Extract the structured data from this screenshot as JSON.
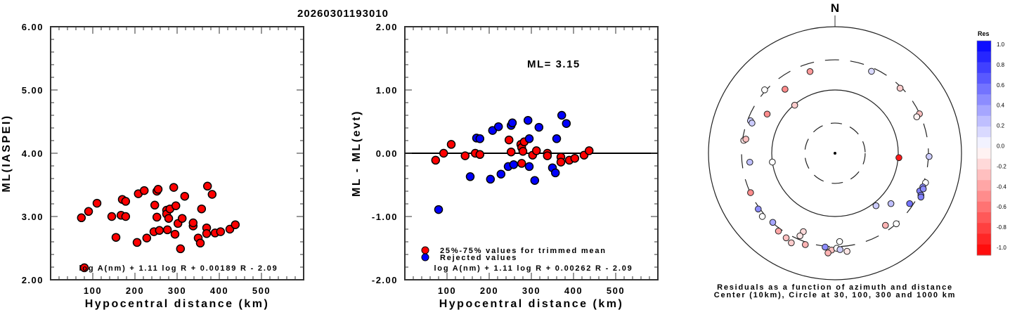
{
  "title": "20260301193010",
  "chart_data": [
    {
      "type": "scatter",
      "name": "magnitude-vs-distance",
      "xlabel": "Hypocentral distance (km)",
      "ylabel": "ML(IASPEI)",
      "xlim": [
        0,
        600
      ],
      "ylim": [
        2.0,
        6.0
      ],
      "xticks": [
        100,
        200,
        300,
        400,
        500
      ],
      "xtick_labels": [
        "100",
        "200",
        "300",
        "400",
        "500"
      ],
      "yticks": [
        2.0,
        3.0,
        4.0,
        5.0,
        6.0
      ],
      "ytick_labels": [
        "2.00",
        "3.00",
        "4.00",
        "5.00",
        "6.00"
      ],
      "formula": "log A(nm) + 1.11 log R + 0.00189 R - 2.09",
      "point_color": "#ff0000",
      "points": [
        {
          "x": 73,
          "y": 2.98
        },
        {
          "x": 90,
          "y": 3.08
        },
        {
          "x": 110,
          "y": 3.21
        },
        {
          "x": 145,
          "y": 3.0
        },
        {
          "x": 155,
          "y": 2.67
        },
        {
          "x": 167,
          "y": 3.02
        },
        {
          "x": 170,
          "y": 3.27
        },
        {
          "x": 178,
          "y": 3.24
        },
        {
          "x": 178,
          "y": 3.0
        },
        {
          "x": 205,
          "y": 2.59
        },
        {
          "x": 208,
          "y": 3.36
        },
        {
          "x": 222,
          "y": 3.41
        },
        {
          "x": 228,
          "y": 2.66
        },
        {
          "x": 245,
          "y": 2.76
        },
        {
          "x": 247,
          "y": 3.18
        },
        {
          "x": 252,
          "y": 3.4
        },
        {
          "x": 252,
          "y": 2.99
        },
        {
          "x": 255,
          "y": 3.43
        },
        {
          "x": 258,
          "y": 2.78
        },
        {
          "x": 275,
          "y": 3.1
        },
        {
          "x": 275,
          "y": 3.04
        },
        {
          "x": 277,
          "y": 2.79
        },
        {
          "x": 280,
          "y": 2.97
        },
        {
          "x": 283,
          "y": 3.12
        },
        {
          "x": 292,
          "y": 3.46
        },
        {
          "x": 295,
          "y": 2.72
        },
        {
          "x": 297,
          "y": 3.17
        },
        {
          "x": 302,
          "y": 2.89
        },
        {
          "x": 308,
          "y": 2.49
        },
        {
          "x": 312,
          "y": 2.97
        },
        {
          "x": 318,
          "y": 3.32
        },
        {
          "x": 338,
          "y": 2.85
        },
        {
          "x": 338,
          "y": 2.9
        },
        {
          "x": 350,
          "y": 2.66
        },
        {
          "x": 355,
          "y": 2.58
        },
        {
          "x": 358,
          "y": 3.12
        },
        {
          "x": 370,
          "y": 2.82
        },
        {
          "x": 370,
          "y": 2.73
        },
        {
          "x": 372,
          "y": 3.48
        },
        {
          "x": 383,
          "y": 3.35
        },
        {
          "x": 390,
          "y": 2.74
        },
        {
          "x": 403,
          "y": 2.76
        },
        {
          "x": 425,
          "y": 2.8
        },
        {
          "x": 438,
          "y": 2.87
        },
        {
          "x": 80,
          "y": 2.19
        }
      ]
    },
    {
      "type": "scatter",
      "name": "residual-vs-distance",
      "xlabel": "Hypocentral distance (km)",
      "ylabel": "ML - ML(evt)",
      "xlim": [
        0,
        600
      ],
      "ylim": [
        -2.0,
        2.0
      ],
      "xticks": [
        100,
        200,
        300,
        400,
        500
      ],
      "xtick_labels": [
        "100",
        "200",
        "300",
        "400",
        "500"
      ],
      "yticks": [
        -2.0,
        -1.0,
        0.0,
        1.0,
        2.0
      ],
      "ytick_labels": [
        "-2.00",
        "-1.00",
        "0.00",
        "1.00",
        "2.00"
      ],
      "annotation": "ML= 3.15",
      "formula": "log A(nm) + 1.11 log R + 0.00262 R - 2.09",
      "legend": [
        {
          "label": "25%-75% values for trimmed mean",
          "color": "#ff0000"
        },
        {
          "label": "Rejected values",
          "color": "#0000ff"
        }
      ],
      "series": [
        {
          "name": "25%-75% values for trimmed mean",
          "color": "#ff0000",
          "points": [
            {
              "x": 73,
              "y": -0.11
            },
            {
              "x": 92,
              "y": 0.0
            },
            {
              "x": 110,
              "y": 0.14
            },
            {
              "x": 143,
              "y": -0.04
            },
            {
              "x": 167,
              "y": 0.0
            },
            {
              "x": 178,
              "y": -0.02
            },
            {
              "x": 247,
              "y": 0.21
            },
            {
              "x": 252,
              "y": 0.02
            },
            {
              "x": 275,
              "y": 0.14
            },
            {
              "x": 277,
              "y": 0.09
            },
            {
              "x": 283,
              "y": 0.18
            },
            {
              "x": 280,
              "y": 0.03
            },
            {
              "x": 277,
              "y": -0.16
            },
            {
              "x": 303,
              "y": -0.03
            },
            {
              "x": 312,
              "y": 0.04
            },
            {
              "x": 338,
              "y": 0.0
            },
            {
              "x": 338,
              "y": -0.04
            },
            {
              "x": 370,
              "y": -0.06
            },
            {
              "x": 370,
              "y": -0.14
            },
            {
              "x": 390,
              "y": -0.11
            },
            {
              "x": 403,
              "y": -0.08
            },
            {
              "x": 425,
              "y": -0.03
            },
            {
              "x": 437,
              "y": 0.04
            }
          ]
        },
        {
          "name": "Rejected values",
          "color": "#0000ff",
          "points": [
            {
              "x": 80,
              "y": -0.89
            },
            {
              "x": 155,
              "y": -0.37
            },
            {
              "x": 170,
              "y": 0.24
            },
            {
              "x": 178,
              "y": 0.23
            },
            {
              "x": 203,
              "y": -0.41
            },
            {
              "x": 208,
              "y": 0.36
            },
            {
              "x": 222,
              "y": 0.42
            },
            {
              "x": 228,
              "y": -0.33
            },
            {
              "x": 245,
              "y": -0.21
            },
            {
              "x": 252,
              "y": 0.44
            },
            {
              "x": 255,
              "y": 0.48
            },
            {
              "x": 258,
              "y": -0.18
            },
            {
              "x": 292,
              "y": 0.52
            },
            {
              "x": 295,
              "y": 0.23
            },
            {
              "x": 295,
              "y": -0.21
            },
            {
              "x": 308,
              "y": -0.43
            },
            {
              "x": 318,
              "y": 0.41
            },
            {
              "x": 350,
              "y": -0.23
            },
            {
              "x": 357,
              "y": -0.31
            },
            {
              "x": 360,
              "y": 0.23
            },
            {
              "x": 372,
              "y": 0.6
            },
            {
              "x": 383,
              "y": 0.47
            }
          ]
        }
      ]
    },
    {
      "type": "scatter",
      "name": "residual-azimuth-polar",
      "north_label": "N",
      "caption_line1": "Residuals as a function of azimuth and distance",
      "caption_line2": "Center (10km), Circle at 30, 100, 300 and 1000 km",
      "radial_scale": "log10",
      "center_km": 10,
      "circles_km": [
        30,
        100,
        300,
        1000
      ],
      "colorbar": {
        "title": "Res",
        "min": -1.0,
        "max": 1.0,
        "labels": [
          "1.0",
          "0.8",
          "0.6",
          "0.4",
          "0.2",
          "0.0",
          "-0.2",
          "-0.4",
          "-0.6",
          "-0.8",
          "-1.0"
        ]
      },
      "stations": [
        {
          "az": 343,
          "dist_km": 224,
          "res": -0.4
        },
        {
          "az": 24,
          "dist_km": 262,
          "res": 0.15
        },
        {
          "az": 45,
          "dist_km": 285,
          "res": -0.2
        },
        {
          "az": 65,
          "dist_km": 297,
          "res": -0.25
        },
        {
          "az": 66,
          "dist_km": 260,
          "res": -0.05
        },
        {
          "az": 322,
          "dist_km": 192,
          "res": -0.45
        },
        {
          "az": 312,
          "dist_km": 314,
          "res": 0.0
        },
        {
          "az": 300,
          "dist_km": 173,
          "res": -0.45
        },
        {
          "az": 320,
          "dist_km": 98,
          "res": -0.2
        },
        {
          "az": 291,
          "dist_km": 270,
          "res": 0.2
        },
        {
          "az": 290,
          "dist_km": 249,
          "res": 0.2
        },
        {
          "az": 278,
          "dist_km": 286,
          "res": -0.1
        },
        {
          "az": 279,
          "dist_km": 267,
          "res": -0.25
        },
        {
          "az": 264,
          "dist_km": 226,
          "res": 0.25
        },
        {
          "az": 262,
          "dist_km": 100,
          "res": 0.0
        },
        {
          "az": 94,
          "dist_km": 103,
          "res": -0.9
        },
        {
          "az": 92,
          "dist_km": 308,
          "res": 0.2
        },
        {
          "az": 245,
          "dist_km": 297,
          "res": -0.45
        },
        {
          "az": 234,
          "dist_km": 316,
          "res": 0.45
        },
        {
          "az": 229,
          "dist_km": 333,
          "res": 0.0
        },
        {
          "az": 222,
          "dist_km": 295,
          "res": 0.35
        },
        {
          "az": 202,
          "dist_km": 217,
          "res": -0.15
        },
        {
          "az": 203,
          "dist_km": 262,
          "res": -0.1
        },
        {
          "az": 216,
          "dist_km": 332,
          "res": -0.35
        },
        {
          "az": 210,
          "dist_km": 350,
          "res": -0.25
        },
        {
          "az": 206,
          "dist_km": 376,
          "res": -0.2
        },
        {
          "az": 198,
          "dist_km": 330,
          "res": -0.3
        },
        {
          "az": 186,
          "dist_km": 310,
          "res": 0.45
        },
        {
          "az": 182,
          "dist_km": 340,
          "res": -0.25
        },
        {
          "az": 179,
          "dist_km": 318,
          "res": 0.0
        },
        {
          "az": 184,
          "dist_km": 380,
          "res": -0.3
        },
        {
          "az": 177,
          "dist_km": 335,
          "res": 0.2
        },
        {
          "az": 173,
          "dist_km": 365,
          "res": -0.1
        },
        {
          "az": 177,
          "dist_km": 250,
          "res": 0.0
        },
        {
          "az": 142,
          "dist_km": 113,
          "res": 0.2
        },
        {
          "az": 132,
          "dist_km": 155,
          "res": 0.25
        },
        {
          "az": 145,
          "dist_km": 246,
          "res": -0.3
        },
        {
          "az": 139,
          "dist_km": 300,
          "res": 0.0
        },
        {
          "az": 124,
          "dist_km": 265,
          "res": 0.55
        },
        {
          "az": 108,
          "dist_km": 320,
          "res": 0.0
        },
        {
          "az": 114,
          "dist_km": 293,
          "res": 0.5
        },
        {
          "az": 111,
          "dist_km": 307,
          "res": 0.45
        },
        {
          "az": 112,
          "dist_km": 320,
          "res": 0.45
        },
        {
          "az": 116,
          "dist_km": 325,
          "res": 0.5
        },
        {
          "az": 117,
          "dist_km": 335,
          "res": 0.5
        }
      ]
    }
  ]
}
